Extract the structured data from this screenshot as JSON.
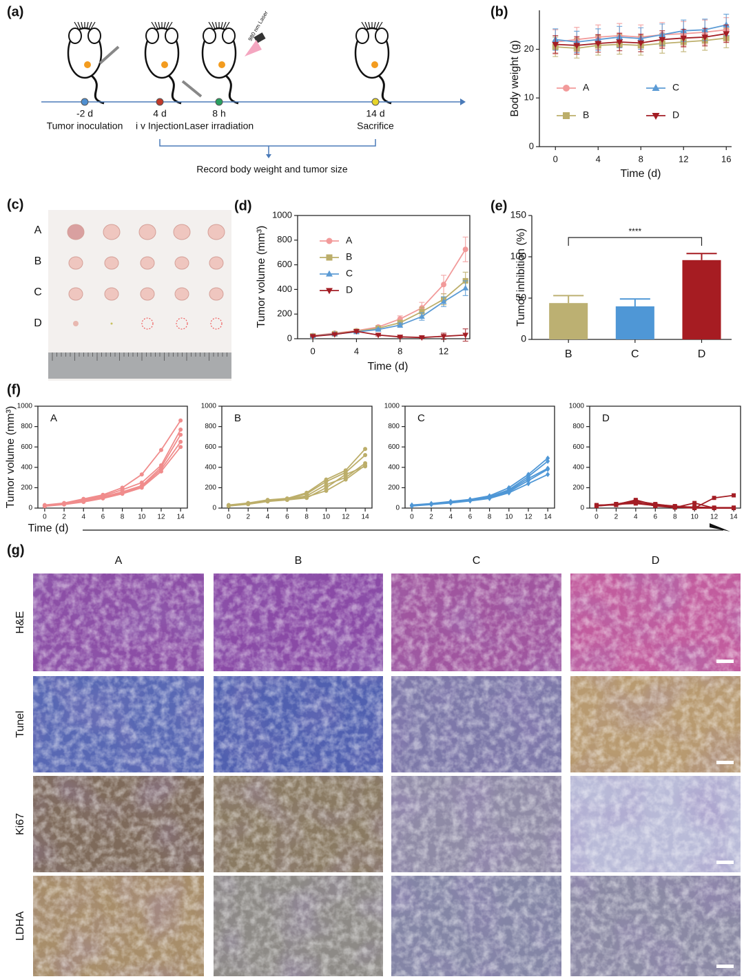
{
  "schematic": {
    "label": "(a)",
    "laser": "980 nm Laser",
    "events": [
      {
        "time": "-2 d",
        "name": "Tumor inoculation"
      },
      {
        "time": "4 d",
        "name": "i v Injection"
      },
      {
        "time": "8 h",
        "name": "Laser irradiation"
      },
      {
        "time": "14 d",
        "name": "Sacrifice"
      }
    ],
    "note": "Record body weight and tumor size"
  },
  "photo": {
    "label": "(c)",
    "rows": [
      "A",
      "B",
      "C",
      "D"
    ]
  },
  "histology": {
    "label": "(g)",
    "columns": [
      "A",
      "B",
      "C",
      "D"
    ],
    "rows": [
      "H&E",
      "Tunel",
      "Ki67",
      "LDHA"
    ]
  },
  "chart_data": [
    {
      "type": "line",
      "label": "(b)",
      "xlabel": "Time (d)",
      "ylabel": "Body weight (g)",
      "x": [
        0,
        2,
        4,
        6,
        8,
        10,
        12,
        14,
        16
      ],
      "xlim": [
        -1.5,
        16.5
      ],
      "xticks": [
        0,
        4,
        8,
        12,
        16
      ],
      "ylim": [
        0,
        28
      ],
      "yticks": [
        0,
        10,
        20
      ],
      "legend": "center",
      "series": [
        {
          "name": "A",
          "color": "#f29a9a",
          "marker": "circle",
          "values": [
            21.5,
            22,
            22.5,
            22.8,
            22.5,
            23,
            23.2,
            23.5,
            24
          ],
          "errors": [
            2.5,
            2.5,
            2.5,
            2.5,
            2.5,
            2.5,
            2.5,
            2.5,
            2.5
          ]
        },
        {
          "name": "B",
          "color": "#bcae6a",
          "marker": "square",
          "values": [
            20.5,
            20.2,
            20.8,
            21,
            20.8,
            21.2,
            21.5,
            21.8,
            22.3
          ],
          "errors": [
            2,
            2,
            2,
            2,
            2,
            2,
            2,
            2,
            2
          ]
        },
        {
          "name": "C",
          "color": "#5b9bd5",
          "marker": "triangle-up",
          "values": [
            22,
            21.5,
            22,
            22.5,
            22.2,
            23,
            23.8,
            24,
            25
          ],
          "errors": [
            2.2,
            2.2,
            2.2,
            2.2,
            2.2,
            2.2,
            2.2,
            2.2,
            2.2
          ]
        },
        {
          "name": "D",
          "color": "#a31d24",
          "marker": "triangle-down",
          "values": [
            21,
            20.8,
            21.2,
            21.5,
            21.3,
            22,
            22.3,
            22.5,
            23.2
          ],
          "errors": [
            1.8,
            1.8,
            1.8,
            1.8,
            1.8,
            1.8,
            1.8,
            1.8,
            1.8
          ]
        }
      ]
    },
    {
      "type": "line",
      "label": "(d)",
      "xlabel": "Time (d)",
      "ylabel": "Tumor volume (mm³)",
      "x": [
        0,
        2,
        4,
        6,
        8,
        10,
        12,
        14
      ],
      "xlim": [
        -1.4,
        14.4
      ],
      "xticks": [
        0,
        4,
        8,
        12
      ],
      "ylim": [
        0,
        1000
      ],
      "yticks": [
        0,
        200,
        400,
        600,
        800,
        1000
      ],
      "legend": "upper left",
      "series": [
        {
          "name": "A",
          "color": "#f29a9a",
          "marker": "circle",
          "values": [
            25,
            45,
            65,
            95,
            160,
            250,
            440,
            725
          ],
          "errors": [
            5,
            6,
            8,
            12,
            25,
            45,
            75,
            100
          ]
        },
        {
          "name": "B",
          "color": "#bcae6a",
          "marker": "square",
          "values": [
            22,
            40,
            60,
            85,
            130,
            220,
            320,
            470
          ],
          "errors": [
            4,
            6,
            8,
            10,
            20,
            35,
            45,
            70
          ]
        },
        {
          "name": "C",
          "color": "#5b9bd5",
          "marker": "triangle-up",
          "values": [
            20,
            38,
            55,
            75,
            110,
            180,
            300,
            410
          ],
          "errors": [
            4,
            5,
            7,
            10,
            18,
            30,
            40,
            60
          ]
        },
        {
          "name": "D",
          "color": "#a31d24",
          "marker": "triangle-down",
          "values": [
            20,
            35,
            60,
            30,
            15,
            10,
            20,
            30
          ],
          "errors": [
            5,
            6,
            10,
            8,
            6,
            5,
            25,
            50
          ]
        }
      ]
    },
    {
      "type": "bar",
      "label": "(e)",
      "ylabel": "Tumor inhibition (%)",
      "categories": [
        "B",
        "C",
        "D"
      ],
      "values": [
        44,
        40,
        96
      ],
      "errors": [
        9,
        9,
        8
      ],
      "colors": [
        "#bcb072",
        "#4f97d6",
        "#a61c22"
      ],
      "ylim": [
        0,
        150
      ],
      "yticks": [
        0,
        50,
        100,
        150
      ],
      "annotation": "****"
    },
    {
      "type": "line",
      "label": "(f)",
      "title": "A",
      "xlabel": "Time (d)",
      "ylabel": "Tumor volume (mm³)",
      "color": "#f08c8c",
      "marker": "circle",
      "x": [
        0,
        2,
        4,
        6,
        8,
        10,
        12,
        14
      ],
      "xlim": [
        -0.7,
        14.7
      ],
      "xticks": [
        0,
        2,
        4,
        6,
        8,
        10,
        12,
        14
      ],
      "ylim": [
        0,
        1000
      ],
      "yticks": [
        0,
        200,
        400,
        600,
        800,
        1000
      ],
      "series": [
        {
          "values": [
            30,
            50,
            90,
            130,
            200,
            330,
            570,
            860
          ]
        },
        {
          "values": [
            25,
            45,
            80,
            120,
            180,
            250,
            420,
            770
          ]
        },
        {
          "values": [
            22,
            40,
            70,
            110,
            160,
            220,
            400,
            720
          ]
        },
        {
          "values": [
            20,
            38,
            65,
            100,
            150,
            210,
            380,
            650
          ]
        },
        {
          "values": [
            18,
            35,
            60,
            95,
            140,
            200,
            360,
            600
          ]
        }
      ]
    },
    {
      "type": "line",
      "title": "B",
      "color": "#bcae6a",
      "marker": "circle",
      "x": [
        0,
        2,
        4,
        6,
        8,
        10,
        12,
        14
      ],
      "xlim": [
        -0.7,
        14.7
      ],
      "xticks": [
        0,
        2,
        4,
        6,
        8,
        10,
        12,
        14
      ],
      "ylim": [
        0,
        1000
      ],
      "yticks": [
        0,
        200,
        400,
        600,
        800,
        1000
      ],
      "series": [
        {
          "values": [
            30,
            50,
            80,
            95,
            150,
            280,
            370,
            580
          ]
        },
        {
          "values": [
            28,
            45,
            75,
            90,
            140,
            260,
            350,
            520
          ]
        },
        {
          "values": [
            25,
            42,
            70,
            88,
            120,
            230,
            300,
            440
          ]
        },
        {
          "values": [
            22,
            40,
            68,
            85,
            110,
            170,
            280,
            420
          ]
        },
        {
          "values": [
            20,
            38,
            65,
            80,
            100,
            200,
            330,
            410
          ]
        }
      ]
    },
    {
      "type": "line",
      "title": "C",
      "color": "#4f97d6",
      "marker": "diamond",
      "x": [
        0,
        2,
        4,
        6,
        8,
        10,
        12,
        14
      ],
      "xlim": [
        -0.7,
        14.7
      ],
      "xticks": [
        0,
        2,
        4,
        6,
        8,
        10,
        12,
        14
      ],
      "ylim": [
        0,
        1000
      ],
      "yticks": [
        0,
        200,
        400,
        600,
        800,
        1000
      ],
      "series": [
        {
          "values": [
            30,
            45,
            65,
            85,
            120,
            200,
            330,
            490
          ]
        },
        {
          "values": [
            28,
            42,
            62,
            82,
            110,
            180,
            310,
            460
          ]
        },
        {
          "values": [
            25,
            40,
            58,
            78,
            105,
            170,
            290,
            390
          ]
        },
        {
          "values": [
            22,
            38,
            55,
            75,
            100,
            160,
            270,
            380
          ]
        },
        {
          "values": [
            20,
            35,
            50,
            70,
            95,
            150,
            240,
            330
          ]
        }
      ]
    },
    {
      "type": "line",
      "title": "D",
      "color": "#a31d24",
      "marker": "square",
      "x": [
        0,
        2,
        4,
        6,
        8,
        10,
        12,
        14
      ],
      "xlim": [
        -0.7,
        14.7
      ],
      "xticks": [
        0,
        2,
        4,
        6,
        8,
        10,
        12,
        14
      ],
      "ylim": [
        0,
        1000
      ],
      "yticks": [
        0,
        200,
        400,
        600,
        800,
        1000
      ],
      "series": [
        {
          "values": [
            20,
            35,
            80,
            30,
            10,
            0,
            100,
            125
          ]
        },
        {
          "values": [
            25,
            40,
            70,
            40,
            15,
            10,
            5,
            5
          ]
        },
        {
          "values": [
            30,
            30,
            60,
            20,
            5,
            50,
            0,
            0
          ]
        },
        {
          "values": [
            20,
            40,
            50,
            35,
            20,
            5,
            0,
            0
          ]
        },
        {
          "values": [
            22,
            38,
            45,
            25,
            10,
            0,
            0,
            0
          ]
        }
      ]
    }
  ]
}
